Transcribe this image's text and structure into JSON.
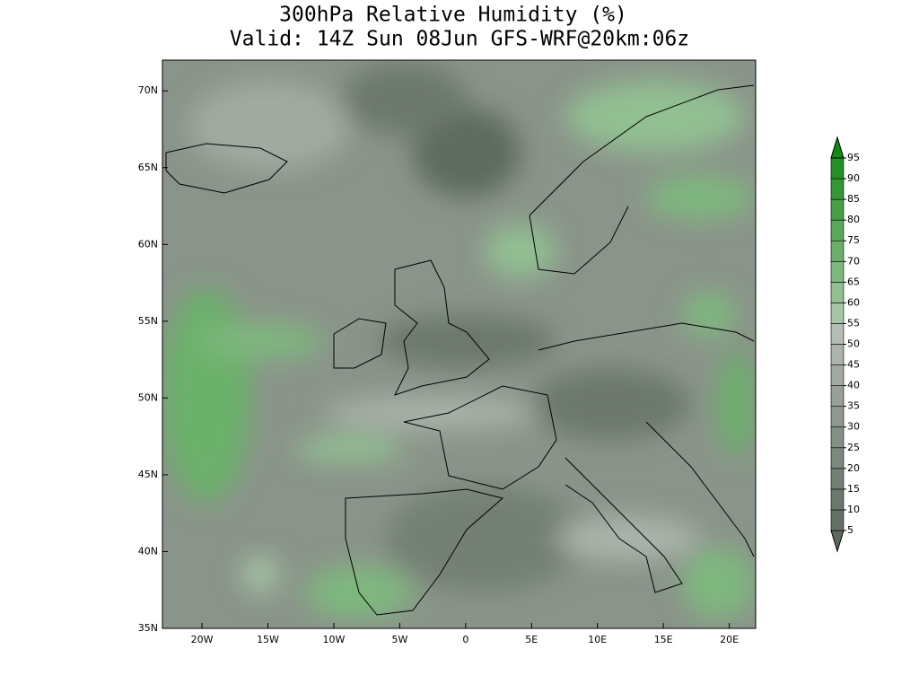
{
  "title": "300hPa Relative Humidity (%)",
  "subtitle": "Valid: 14Z Sun 08Jun GFS-WRF@20km:06z",
  "map": {
    "xlim": [
      -23,
      22
    ],
    "ylim": [
      35,
      72
    ],
    "xticks": [
      {
        "value": -20,
        "label": "20W"
      },
      {
        "value": -15,
        "label": "15W"
      },
      {
        "value": -10,
        "label": "10W"
      },
      {
        "value": -5,
        "label": "5W"
      },
      0,
      {
        "value": 5,
        "label": "5E"
      },
      {
        "value": 10,
        "label": "10E"
      },
      {
        "value": 15,
        "label": "15E"
      },
      {
        "value": 20,
        "label": "20E"
      }
    ],
    "yticks": [
      {
        "value": 35,
        "label": "35N"
      },
      {
        "value": 40,
        "label": "40N"
      },
      {
        "value": 45,
        "label": "45N"
      },
      {
        "value": 50,
        "label": "50N"
      },
      {
        "value": 55,
        "label": "55N"
      },
      {
        "value": 60,
        "label": "60N"
      },
      {
        "value": 65,
        "label": "65N"
      },
      {
        "value": 70,
        "label": "70N"
      }
    ]
  },
  "colorbar": {
    "levels": [
      5,
      10,
      15,
      20,
      25,
      30,
      35,
      40,
      45,
      50,
      55,
      60,
      65,
      70,
      75,
      80,
      85,
      90,
      95
    ],
    "colors": [
      "#5f6a5f",
      "#667166",
      "#6d786d",
      "#758075",
      "#7d887d",
      "#859085",
      "#8e988e",
      "#97a197",
      "#a1aaa1",
      "#abb4ab",
      "#b4beb4",
      "#a6c6a6",
      "#92c092",
      "#7eb87e",
      "#6ab06a",
      "#58a858",
      "#46a046",
      "#349834",
      "#229022",
      "#128a12"
    ]
  }
}
